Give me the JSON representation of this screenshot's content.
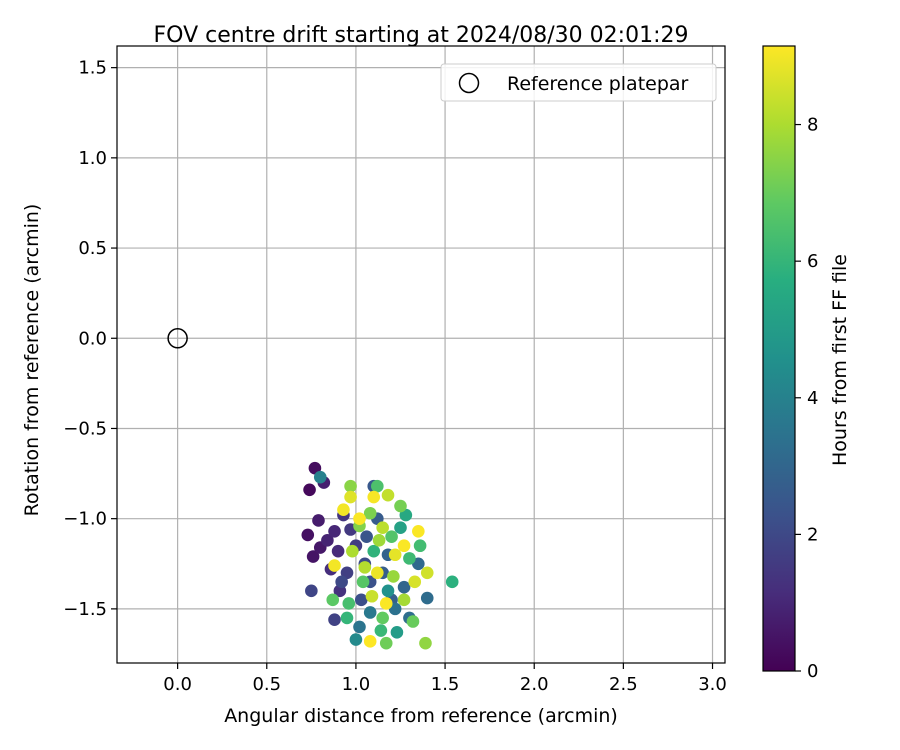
{
  "chart_data": {
    "type": "scatter",
    "title": "FOV centre drift starting at 2024/08/30 02:01:29",
    "xlabel": "Angular distance from reference (arcmin)",
    "ylabel": "Rotation from reference (arcmin)",
    "xlim": [
      -0.34,
      3.07
    ],
    "ylim": [
      -1.8,
      1.62
    ],
    "x_ticks": [
      "0.0",
      "0.5",
      "1.0",
      "1.5",
      "2.0",
      "2.5",
      "3.0"
    ],
    "y_ticks": [
      "1.5",
      "1.0",
      "0.5",
      "0.0",
      "−0.5",
      "−1.0",
      "−1.5"
    ],
    "grid": true,
    "legend": {
      "placement": "top-right",
      "entries": [
        "Reference platepar"
      ]
    },
    "reference_point": {
      "x": 0.0,
      "y": 0.0
    },
    "colorbar": {
      "label": "Hours from first FF file",
      "range": [
        0,
        9.15
      ],
      "ticks": [
        "0",
        "2",
        "4",
        "6",
        "8"
      ],
      "colormap": "viridis"
    },
    "points": [
      {
        "x": 0.74,
        "y": -0.84,
        "c": 0.2
      },
      {
        "x": 0.77,
        "y": -0.72,
        "c": 0.3
      },
      {
        "x": 0.73,
        "y": -1.09,
        "c": 0.4
      },
      {
        "x": 0.76,
        "y": -1.21,
        "c": 0.5
      },
      {
        "x": 0.8,
        "y": -1.16,
        "c": 0.6
      },
      {
        "x": 0.79,
        "y": -1.01,
        "c": 0.7
      },
      {
        "x": 0.82,
        "y": -0.8,
        "c": 0.8
      },
      {
        "x": 0.84,
        "y": -1.12,
        "c": 0.9
      },
      {
        "x": 0.88,
        "y": -1.07,
        "c": 1.0
      },
      {
        "x": 0.9,
        "y": -1.18,
        "c": 1.1
      },
      {
        "x": 0.86,
        "y": -1.28,
        "c": 1.2
      },
      {
        "x": 0.91,
        "y": -1.4,
        "c": 1.3
      },
      {
        "x": 0.93,
        "y": -0.98,
        "c": 1.4
      },
      {
        "x": 0.97,
        "y": -1.06,
        "c": 1.5
      },
      {
        "x": 1.0,
        "y": -1.15,
        "c": 1.6
      },
      {
        "x": 0.95,
        "y": -1.3,
        "c": 1.7
      },
      {
        "x": 0.88,
        "y": -1.56,
        "c": 1.8
      },
      {
        "x": 0.75,
        "y": -1.4,
        "c": 1.9
      },
      {
        "x": 0.92,
        "y": -1.35,
        "c": 2.0
      },
      {
        "x": 1.05,
        "y": -1.25,
        "c": 2.1
      },
      {
        "x": 1.03,
        "y": -1.45,
        "c": 2.2
      },
      {
        "x": 1.08,
        "y": -1.35,
        "c": 2.3
      },
      {
        "x": 1.06,
        "y": -1.1,
        "c": 2.4
      },
      {
        "x": 1.1,
        "y": -0.82,
        "c": 2.5
      },
      {
        "x": 1.12,
        "y": -1.0,
        "c": 2.6
      },
      {
        "x": 1.15,
        "y": -1.3,
        "c": 2.7
      },
      {
        "x": 1.2,
        "y": -1.45,
        "c": 2.8
      },
      {
        "x": 1.18,
        "y": -1.2,
        "c": 2.9
      },
      {
        "x": 1.27,
        "y": -1.38,
        "c": 3.0
      },
      {
        "x": 1.35,
        "y": -1.25,
        "c": 3.1
      },
      {
        "x": 1.4,
        "y": -1.44,
        "c": 3.2
      },
      {
        "x": 1.3,
        "y": -1.55,
        "c": 3.3
      },
      {
        "x": 1.22,
        "y": -1.5,
        "c": 3.4
      },
      {
        "x": 1.02,
        "y": -1.6,
        "c": 3.5
      },
      {
        "x": 1.08,
        "y": -1.52,
        "c": 3.7
      },
      {
        "x": 0.8,
        "y": -0.77,
        "c": 4.0
      },
      {
        "x": 1.0,
        "y": -1.67,
        "c": 4.3
      },
      {
        "x": 1.18,
        "y": -1.4,
        "c": 4.6
      },
      {
        "x": 1.23,
        "y": -1.63,
        "c": 5.0
      },
      {
        "x": 1.25,
        "y": -1.05,
        "c": 5.2
      },
      {
        "x": 1.28,
        "y": -0.98,
        "c": 5.5
      },
      {
        "x": 1.54,
        "y": -1.35,
        "c": 5.8
      },
      {
        "x": 1.1,
        "y": -1.18,
        "c": 5.9
      },
      {
        "x": 0.95,
        "y": -1.55,
        "c": 6.0
      },
      {
        "x": 1.14,
        "y": -1.62,
        "c": 6.1
      },
      {
        "x": 1.3,
        "y": -1.22,
        "c": 6.2
      },
      {
        "x": 1.36,
        "y": -1.15,
        "c": 6.3
      },
      {
        "x": 0.96,
        "y": -1.47,
        "c": 6.4
      },
      {
        "x": 1.12,
        "y": -0.82,
        "c": 6.5
      },
      {
        "x": 1.2,
        "y": -1.1,
        "c": 6.6
      },
      {
        "x": 1.04,
        "y": -1.35,
        "c": 6.7
      },
      {
        "x": 0.87,
        "y": -1.45,
        "c": 6.8
      },
      {
        "x": 1.15,
        "y": -1.55,
        "c": 6.9
      },
      {
        "x": 1.32,
        "y": -1.57,
        "c": 7.0
      },
      {
        "x": 1.17,
        "y": -1.69,
        "c": 7.1
      },
      {
        "x": 1.25,
        "y": -0.93,
        "c": 7.2
      },
      {
        "x": 1.08,
        "y": -0.97,
        "c": 7.3
      },
      {
        "x": 1.02,
        "y": -1.04,
        "c": 7.4
      },
      {
        "x": 0.97,
        "y": -0.82,
        "c": 7.5
      },
      {
        "x": 1.39,
        "y": -1.69,
        "c": 7.6
      },
      {
        "x": 1.21,
        "y": -1.32,
        "c": 7.7
      },
      {
        "x": 1.13,
        "y": -1.12,
        "c": 7.8
      },
      {
        "x": 1.27,
        "y": -1.45,
        "c": 7.9
      },
      {
        "x": 0.98,
        "y": -1.18,
        "c": 8.0
      },
      {
        "x": 1.05,
        "y": -1.27,
        "c": 8.1
      },
      {
        "x": 1.15,
        "y": -1.05,
        "c": 8.2
      },
      {
        "x": 1.18,
        "y": -0.87,
        "c": 8.3
      },
      {
        "x": 1.09,
        "y": -1.43,
        "c": 8.4
      },
      {
        "x": 1.4,
        "y": -1.3,
        "c": 8.5
      },
      {
        "x": 1.33,
        "y": -1.35,
        "c": 8.6
      },
      {
        "x": 0.97,
        "y": -0.88,
        "c": 8.7
      },
      {
        "x": 1.22,
        "y": -1.2,
        "c": 8.8
      },
      {
        "x": 1.12,
        "y": -1.3,
        "c": 8.9
      },
      {
        "x": 0.88,
        "y": -1.26,
        "c": 9.0
      },
      {
        "x": 1.1,
        "y": -0.88,
        "c": 9.05
      },
      {
        "x": 1.35,
        "y": -1.07,
        "c": 9.1
      },
      {
        "x": 1.17,
        "y": -1.47,
        "c": 9.1
      },
      {
        "x": 1.27,
        "y": -1.15,
        "c": 9.1
      },
      {
        "x": 1.02,
        "y": -1.0,
        "c": 9.1
      },
      {
        "x": 1.08,
        "y": -1.68,
        "c": 9.15
      },
      {
        "x": 0.93,
        "y": -0.95,
        "c": 9.0
      }
    ]
  }
}
